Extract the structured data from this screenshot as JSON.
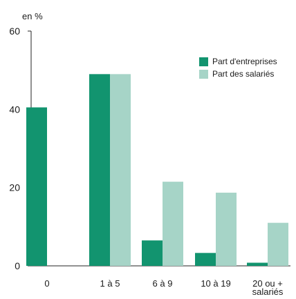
{
  "chart_data": {
    "type": "bar",
    "categories": [
      "0",
      "1 à 5",
      "6 à 9",
      "10 à 19",
      "20 ou + salariés"
    ],
    "series": [
      {
        "name": "Part d'entreprises",
        "values": [
          40.5,
          49,
          6.5,
          3.3,
          0.8
        ],
        "color": "#12946f"
      },
      {
        "name": "Part des salariés",
        "values": [
          0,
          49,
          21.5,
          18.7,
          11
        ],
        "color": "#a6d4c7"
      }
    ],
    "unit_label": "en %",
    "ylim": [
      0,
      60
    ],
    "yticks": [
      0,
      20,
      40,
      60
    ],
    "grid": false,
    "legend_position": "top-right"
  }
}
